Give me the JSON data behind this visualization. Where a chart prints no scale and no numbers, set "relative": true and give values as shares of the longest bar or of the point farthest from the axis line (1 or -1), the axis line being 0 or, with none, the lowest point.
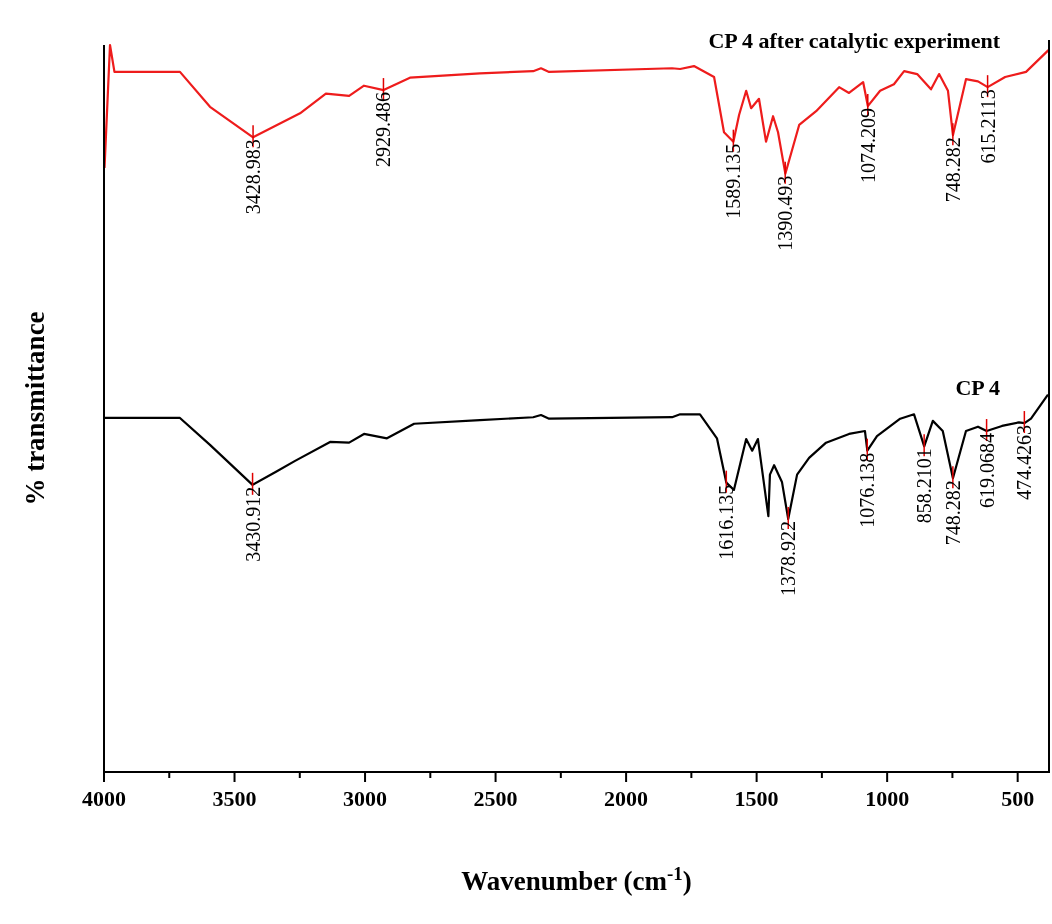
{
  "chart_data": {
    "type": "line",
    "relative": true,
    "xlabel": "Wavenumber (cm$^{-1}$)",
    "ylabel": "% transmittance",
    "xlim": [
      4000,
      380
    ],
    "xticks": [
      4000,
      {
        "value": 3750,
        "label": null
      },
      3500,
      {
        "value": 3250,
        "label": null
      },
      3000,
      {
        "value": 2750,
        "label": null
      },
      2500,
      {
        "value": 2250,
        "label": null
      },
      2000,
      {
        "value": 1750,
        "label": null
      },
      1500,
      {
        "value": 1250,
        "label": null
      },
      1000,
      {
        "value": 750,
        "label": null
      },
      500
    ],
    "series": [
      {
        "name": "CP 4 after catalytic experiment",
        "color": "#ee1c1c",
        "x": [
          3998,
          3977,
          3960,
          3709,
          3594,
          3429,
          3249,
          3150,
          3061,
          3004,
          2929,
          2828,
          2560,
          2356,
          2326,
          2295,
          1824,
          1793,
          1740,
          1663,
          1625,
          1589,
          1567,
          1540,
          1521,
          1491,
          1464,
          1437,
          1418,
          1390,
          1337,
          1272,
          1184,
          1146,
          1092,
          1074,
          1027,
          974,
          935,
          885,
          832,
          801,
          767,
          748,
          698,
          652,
          615,
          548,
          468,
          382
        ],
        "values": [
          0.831,
          1.0,
          0.963,
          0.963,
          0.915,
          0.873,
          0.906,
          0.933,
          0.93,
          0.944,
          0.938,
          0.955,
          0.961,
          0.964,
          0.968,
          0.963,
          0.968,
          0.967,
          0.971,
          0.956,
          0.88,
          0.867,
          0.904,
          0.937,
          0.913,
          0.926,
          0.867,
          0.902,
          0.88,
          0.823,
          0.89,
          0.909,
          0.942,
          0.934,
          0.949,
          0.916,
          0.937,
          0.946,
          0.964,
          0.96,
          0.939,
          0.96,
          0.937,
          0.876,
          0.953,
          0.95,
          0.942,
          0.956,
          0.963,
          0.993
        ]
      },
      {
        "name": "CP 4",
        "color": "#000000",
        "x": [
          3998,
          3709,
          3594,
          3431,
          3341,
          3268,
          3134,
          3061,
          3004,
          2916,
          2812,
          2560,
          2356,
          2326,
          2295,
          1824,
          1793,
          1717,
          1652,
          1616,
          1587,
          1540,
          1517,
          1495,
          1455,
          1449,
          1433,
          1403,
          1379,
          1345,
          1299,
          1234,
          1146,
          1085,
          1076,
          1039,
          950,
          897,
          858,
          825,
          787,
          748,
          698,
          652,
          619,
          560,
          495,
          474,
          449,
          384
        ],
        "values": [
          0.487,
          0.487,
          0.45,
          0.395,
          0.413,
          0.428,
          0.454,
          0.453,
          0.465,
          0.459,
          0.479,
          0.484,
          0.488,
          0.491,
          0.486,
          0.488,
          0.492,
          0.492,
          0.459,
          0.398,
          0.388,
          0.458,
          0.442,
          0.458,
          0.352,
          0.409,
          0.422,
          0.399,
          0.348,
          0.409,
          0.432,
          0.453,
          0.465,
          0.469,
          0.442,
          0.462,
          0.486,
          0.492,
          0.448,
          0.483,
          0.469,
          0.404,
          0.469,
          0.475,
          0.469,
          0.476,
          0.481,
          0.48,
          0.486,
          0.519
        ]
      }
    ],
    "annotations": [
      {
        "text": "3428.983",
        "x": 3428.983,
        "y": 0.873
      },
      {
        "text": "2929.486",
        "x": 2929.486,
        "y": 0.938
      },
      {
        "text": "1589.135",
        "x": 1589.135,
        "y": 0.867
      },
      {
        "text": "1390.493",
        "x": 1390.493,
        "y": 0.823
      },
      {
        "text": "1074.209",
        "x": 1074.209,
        "y": 0.916
      },
      {
        "text": "748.282",
        "x": 748.282,
        "y": 0.876
      },
      {
        "text": "615.2113",
        "x": 615.2113,
        "y": 0.942
      },
      {
        "text": "3430.912",
        "x": 3430.912,
        "y": 0.395
      },
      {
        "text": "1616.135",
        "x": 1616.135,
        "y": 0.398
      },
      {
        "text": "1378.922",
        "x": 1378.922,
        "y": 0.348
      },
      {
        "text": "1076.138",
        "x": 1076.138,
        "y": 0.442
      },
      {
        "text": "858.2101",
        "x": 858.2101,
        "y": 0.448
      },
      {
        "text": "748.282",
        "x": 748.282,
        "y": 0.404
      },
      {
        "text": "619.0684",
        "x": 619.0684,
        "y": 0.469
      },
      {
        "text": "474.4263",
        "x": 474.4263,
        "y": 0.48
      }
    ]
  }
}
